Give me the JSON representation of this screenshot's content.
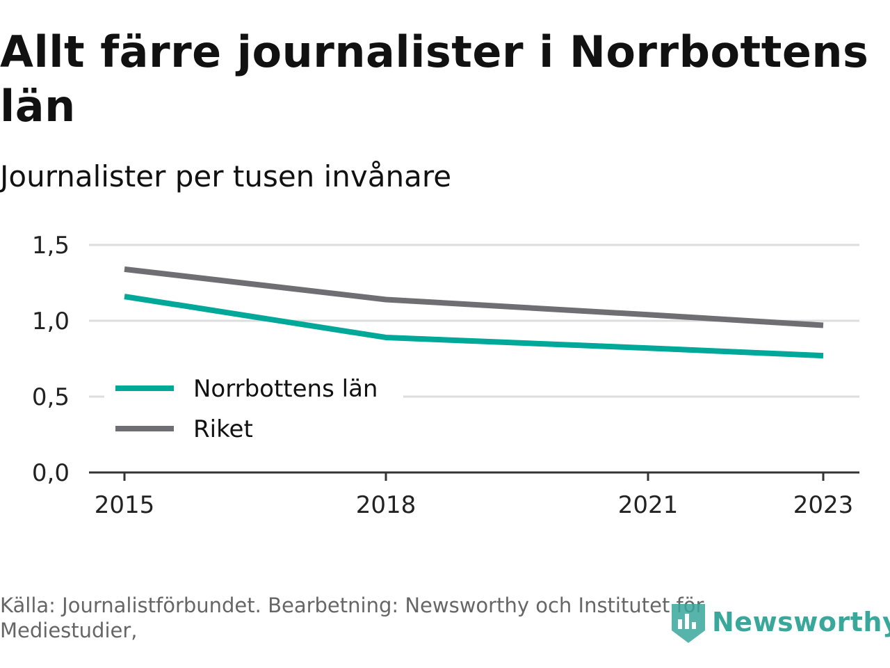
{
  "header": {
    "title": "Allt färre journalister i Norrbottens län",
    "subtitle": "Journalister per tusen invånare"
  },
  "chart_data": {
    "type": "line",
    "x": [
      2015,
      2018,
      2021,
      2023
    ],
    "x_tick_labels": [
      "2015",
      "2018",
      "2021",
      "2023"
    ],
    "y_ticks": [
      0.0,
      0.5,
      1.0,
      1.5
    ],
    "y_tick_labels": [
      "0,0",
      "0,5",
      "1,0",
      "1,5"
    ],
    "ylim": [
      0,
      1.5
    ],
    "grid": true,
    "legend_position": "lower-left",
    "series": [
      {
        "name": "Norrbottens län",
        "color": "#00a89a",
        "values": [
          1.16,
          0.89,
          0.82,
          0.77
        ]
      },
      {
        "name": "Riket",
        "color": "#6e6e73",
        "values": [
          1.34,
          1.14,
          1.04,
          0.97
        ]
      }
    ]
  },
  "footer": {
    "source": "Källa: Journalistförbundet. Bearbetning: Newsworthy och Institutet för Mediestudier,",
    "brand": "Newsworthy",
    "brand_color": "#3aa79b",
    "brand_icon": "bar-chart-shield-icon"
  }
}
